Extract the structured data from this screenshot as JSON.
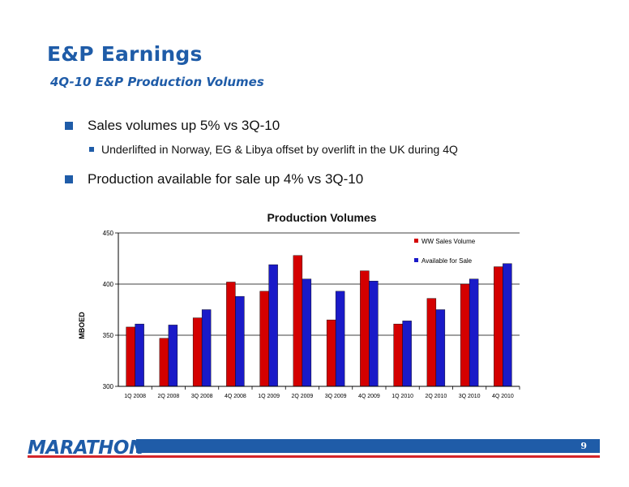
{
  "header": {
    "title": "E&P Earnings",
    "subtitle": "4Q-10 E&P Production Volumes"
  },
  "bullets": [
    {
      "text": "Sales volumes up 5% vs 3Q-10"
    },
    {
      "text": "Underlifted in Norway, EG & Libya offset by overlift in the UK during 4Q"
    },
    {
      "text": "Production available for sale up 4% vs 3Q-10"
    }
  ],
  "colors": {
    "brand_blue": "#1f5ca8",
    "accent_red": "#d4262b",
    "series_red": "#d40000",
    "series_blue": "#1a1ac8"
  },
  "chart_data": {
    "type": "bar",
    "title": "Production Volumes",
    "xlabel": "",
    "ylabel": "MBOED",
    "ylim": [
      300,
      450
    ],
    "yticks": [
      300,
      350,
      400,
      450
    ],
    "grid": true,
    "legend_position": "top-right",
    "categories": [
      "1Q 2008",
      "2Q 2008",
      "3Q 2008",
      "4Q 2008",
      "1Q 2009",
      "2Q 2009",
      "3Q 2009",
      "4Q 2009",
      "1Q 2010",
      "2Q 2010",
      "3Q 2010",
      "4Q 2010"
    ],
    "series": [
      {
        "name": "WW Sales Volume",
        "color": "#d40000",
        "values": [
          358,
          347,
          367,
          402,
          393,
          428,
          365,
          413,
          361,
          386,
          400,
          417
        ]
      },
      {
        "name": "Available for Sale",
        "color": "#1a1ac8",
        "values": [
          361,
          360,
          375,
          388,
          419,
          405,
          393,
          403,
          364,
          375,
          405,
          420
        ]
      }
    ]
  },
  "footer": {
    "logo_text": "MARATHON",
    "page_number": "9"
  }
}
